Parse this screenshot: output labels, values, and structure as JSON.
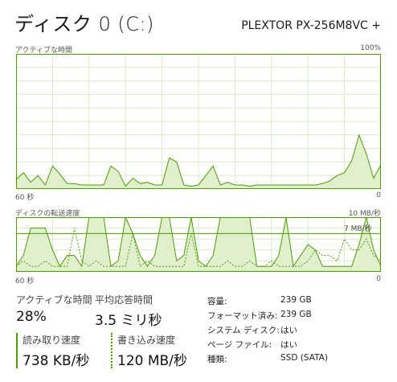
{
  "header": {
    "title": "ディスク 0 (C:)",
    "model": "PLEXTOR PX-256M8VC +"
  },
  "active_time_chart": {
    "label": "アクティブな時間",
    "max_label": "100%",
    "x_left_label": "60 秒",
    "x_right_label": "0",
    "values_percent": [
      7,
      12,
      5,
      10,
      3,
      17,
      11,
      4,
      4,
      3,
      3,
      3,
      3,
      17,
      13,
      2,
      8,
      4,
      5,
      3,
      3,
      23,
      20,
      3,
      2,
      3,
      10,
      17,
      3,
      5,
      3,
      3,
      2,
      3,
      3,
      3,
      3,
      3,
      3,
      3,
      3,
      3,
      4,
      6,
      10,
      12,
      21,
      40,
      26,
      8,
      18
    ]
  },
  "transfer_chart": {
    "label": "ディスクの転送速度",
    "max_label": "10 MB/秒",
    "ref_line_label": "7 MB/秒",
    "x_left_label": "60 秒",
    "x_right_label": "0",
    "read_mbps": [
      1,
      3,
      8,
      8,
      8,
      4,
      1,
      3,
      3,
      1,
      10,
      10,
      10,
      1,
      2,
      10,
      7,
      3,
      1,
      3,
      10,
      10,
      2,
      3,
      10,
      2,
      1,
      3,
      10,
      10,
      10,
      10,
      10,
      1,
      1,
      1,
      3,
      10,
      1,
      3,
      5,
      4,
      1,
      1,
      1,
      1,
      1,
      5,
      10,
      4,
      1
    ],
    "write_mbps": [
      1,
      2,
      1,
      1,
      2,
      1,
      1,
      1,
      8,
      2,
      1,
      2,
      1,
      1,
      1,
      1,
      7,
      1,
      2,
      1,
      1,
      1,
      1,
      1,
      7,
      1,
      1,
      1,
      1,
      2,
      1,
      1,
      2,
      1,
      1,
      2,
      1,
      1,
      1,
      1,
      2,
      4,
      3,
      3,
      2,
      6,
      4,
      4,
      6,
      3,
      2
    ]
  },
  "stats": {
    "active_time": {
      "label": "アクティブな時間",
      "value": "28%"
    },
    "avg_response": {
      "label": "平均応答時間",
      "value": "3.5 ミリ秒"
    },
    "read_speed": {
      "label": "読み取り速度",
      "value": "738 KB/秒"
    },
    "write_speed": {
      "label": "書き込み速度",
      "value": "120 MB/秒"
    }
  },
  "properties": [
    {
      "label": "容量:",
      "value": "239 GB"
    },
    {
      "label": "フォーマット済み:",
      "value": "239 GB"
    },
    {
      "label": "システム ディスク:",
      "value": "はい"
    },
    {
      "label": "ページ ファイル:",
      "value": "はい"
    },
    {
      "label": "種類:",
      "value": "SSD (SATA)"
    }
  ],
  "colors": {
    "accent": "#4e9a06",
    "fill": "#e1f0cc",
    "grid": "#d9ecc4"
  }
}
